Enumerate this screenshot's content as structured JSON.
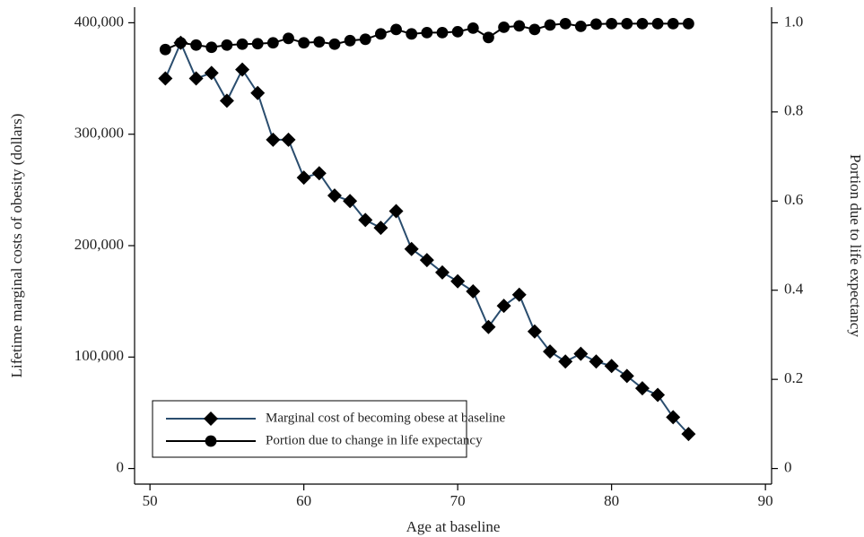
{
  "chart_data": {
    "type": "line",
    "x_label": "Age at baseline",
    "y_label": "Lifetime marginal costs of obesity (dollars)",
    "y2_label": "Portion due to life expectancy",
    "x": [
      51,
      52,
      53,
      54,
      55,
      56,
      57,
      58,
      59,
      60,
      61,
      62,
      63,
      64,
      65,
      66,
      67,
      68,
      69,
      70,
      71,
      72,
      73,
      74,
      75,
      76,
      77,
      78,
      79,
      80,
      81,
      82,
      83,
      84,
      85
    ],
    "series": [
      {
        "name": "Marginal cost of becoming obese at baseline",
        "color": "#2a4d6e",
        "marker": "diamond",
        "values": [
          350000,
          382000,
          350000,
          355000,
          330000,
          358000,
          337000,
          295000,
          295000,
          261000,
          265000,
          245000,
          240000,
          223000,
          216000,
          231000,
          197000,
          187000,
          176000,
          168000,
          159000,
          127000,
          146000,
          156000,
          123000,
          105000,
          96000,
          103000,
          96000,
          92000,
          83000,
          72000,
          66000,
          46000,
          31000
        ]
      },
      {
        "name": "Portion due to change in life expectancy",
        "color": "#000000",
        "marker": "circle",
        "axis": "y2",
        "values": [
          0.94,
          0.955,
          0.95,
          0.945,
          0.95,
          0.952,
          0.953,
          0.955,
          0.965,
          0.955,
          0.957,
          0.952,
          0.96,
          0.963,
          0.975,
          0.985,
          0.975,
          0.978,
          0.978,
          0.98,
          0.988,
          0.967,
          0.99,
          0.993,
          0.985,
          0.995,
          0.998,
          0.992,
          0.997,
          0.998,
          0.998,
          0.998,
          0.998,
          0.998,
          0.998
        ]
      }
    ],
    "xlim": [
      49,
      90.4
    ],
    "xticks": [
      50,
      60,
      70,
      80,
      90
    ],
    "ylim": [
      -14000,
      414000
    ],
    "yticks": [
      0,
      {
        "value": 100000,
        "label": "100,000"
      },
      {
        "value": 200000,
        "label": "200,000"
      },
      {
        "value": 300000,
        "label": "300,000"
      },
      {
        "value": 400000,
        "label": "400,000"
      }
    ],
    "y2lim": [
      -0.035,
      1.035
    ],
    "y2ticks": [
      0,
      0.2,
      0.4,
      0.6,
      0.8,
      {
        "value": 1,
        "label": "1.0"
      }
    ],
    "legend": "lower left"
  }
}
